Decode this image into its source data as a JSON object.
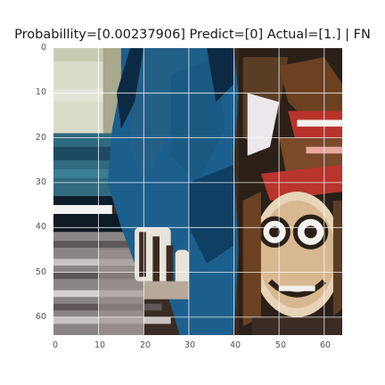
{
  "figure": {
    "title": "Probabillity=[0.00237906] Predict=[0] Actual=[1.] | FN",
    "x_ticks": [
      "0",
      "10",
      "20",
      "30",
      "40",
      "50",
      "60"
    ],
    "y_ticks": [
      "0",
      "10",
      "20",
      "30",
      "40",
      "50",
      "60"
    ],
    "image_size_units": 64,
    "grid": true,
    "grid_color": "#ffffff"
  },
  "image": {
    "description_icon": "waldo-photo-icon",
    "colors": {
      "blue_coat": "#1d5f8c",
      "dark_blue": "#0d2a45",
      "pale_top_left": "#d9dcc8",
      "teal_stripe": "#2f6a80",
      "gray_stripes": "#8a8584",
      "dark_bg": "#2a2018",
      "brown": "#6b4122",
      "red": "#b8342c",
      "skin": "#e8d4b8",
      "white": "#f4f2ee"
    }
  }
}
